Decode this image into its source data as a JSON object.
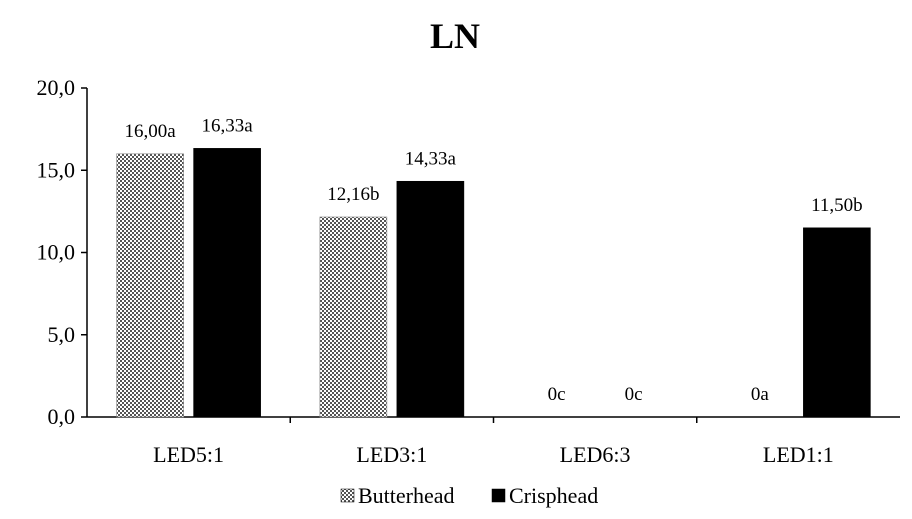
{
  "chart_data": {
    "type": "bar",
    "title": "LN",
    "categories": [
      "LED5:1",
      "LED3:1",
      "LED6:3",
      "LED1:1"
    ],
    "series": [
      {
        "name": "Butterhead",
        "values": [
          16.0,
          12.16,
          0,
          0
        ],
        "labels": [
          "16,00a",
          "12,16b",
          "0c",
          "0a"
        ],
        "color": "#7a7a7a",
        "pattern": "checker"
      },
      {
        "name": "Crisphead",
        "values": [
          16.33,
          14.33,
          0,
          11.5
        ],
        "labels": [
          "16,33a",
          "14,33a",
          "0c",
          "11,50b"
        ],
        "color": "#000000",
        "pattern": "solid"
      }
    ],
    "ylim": [
      0,
      20
    ],
    "yticks": [
      0,
      5,
      10,
      15,
      20
    ],
    "ytick_labels": [
      "0,0",
      "5,0",
      "10,0",
      "15,0",
      "20,0"
    ],
    "legend_position": "bottom",
    "grid": false
  }
}
